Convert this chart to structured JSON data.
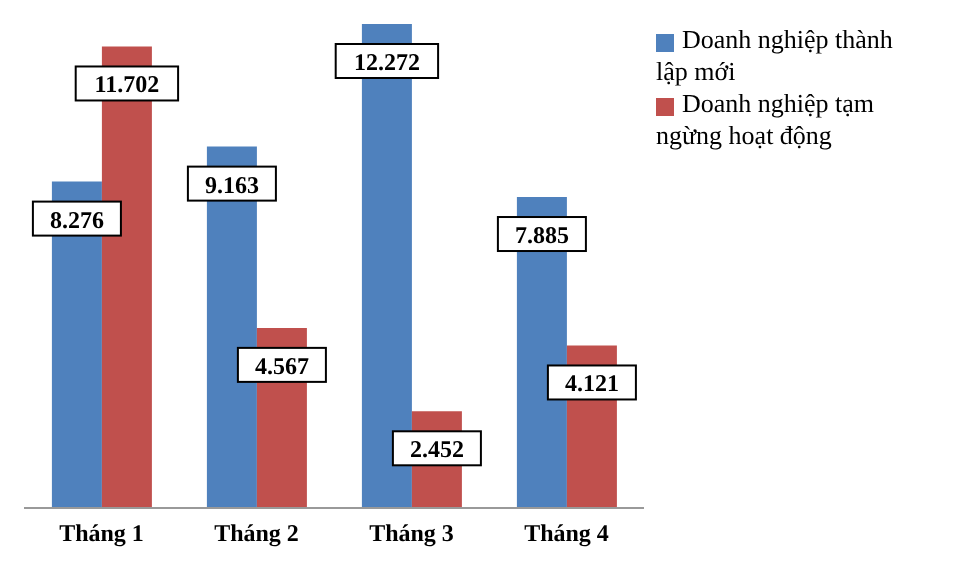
{
  "chart_data": {
    "type": "bar",
    "categories": [
      "Tháng 1",
      "Tháng 2",
      "Tháng 3",
      "Tháng 4"
    ],
    "series": [
      {
        "name": "Doanh nghiệp thành lập mới",
        "color": "#4f81bd",
        "values": [
          8276,
          9163,
          12272,
          7885
        ],
        "value_labels": [
          "8.276",
          "9.163",
          "12.272",
          "7.885"
        ]
      },
      {
        "name": "Doanh nghiệp tạm ngừng hoạt động",
        "color": "#c0504d",
        "values": [
          11702,
          4567,
          2452,
          4121
        ],
        "value_labels": [
          "11.702",
          "4.567",
          "2.452",
          "4.121"
        ]
      }
    ],
    "legend": "top right",
    "grid": false
  }
}
